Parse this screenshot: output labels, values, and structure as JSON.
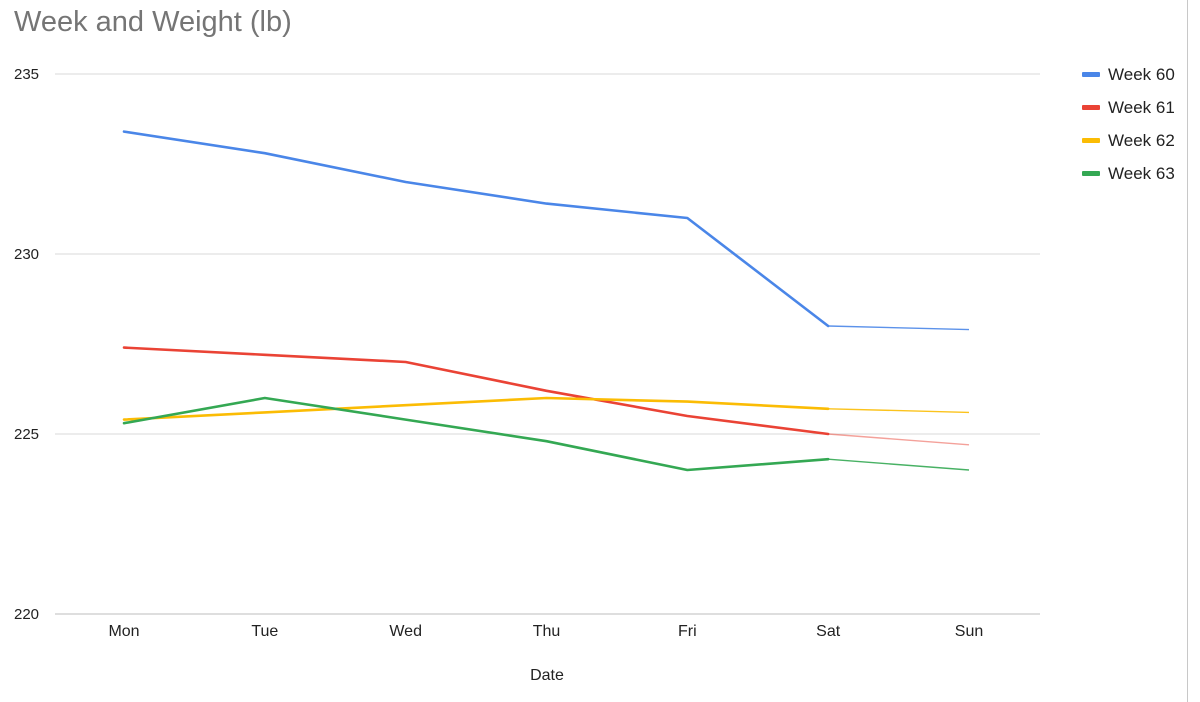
{
  "chart_data": {
    "type": "line",
    "title": "Week and Weight (lb)",
    "xlabel": "Date",
    "ylabel": "",
    "categories": [
      "Mon",
      "Tue",
      "Wed",
      "Thu",
      "Fri",
      "Sat",
      "Sun"
    ],
    "ylim": [
      220,
      235
    ],
    "yticks": [
      235,
      230,
      225,
      220
    ],
    "grid": true,
    "legend_position": "right",
    "series": [
      {
        "name": "Week 60",
        "color": "#4a86e8",
        "values": [
          233.4,
          232.8,
          232.0,
          231.4,
          231.0,
          228.0,
          227.9
        ]
      },
      {
        "name": "Week 61",
        "color": "#ea4335",
        "values": [
          227.4,
          227.2,
          227.0,
          226.2,
          225.5,
          225.0,
          224.7
        ]
      },
      {
        "name": "Week 62",
        "color": "#fbbc04",
        "values": [
          225.4,
          225.6,
          225.8,
          226.0,
          225.9,
          225.7,
          225.6
        ]
      },
      {
        "name": "Week 63",
        "color": "#34a853",
        "values": [
          225.3,
          226.0,
          225.4,
          224.8,
          224.0,
          224.3,
          224.0
        ]
      }
    ]
  }
}
